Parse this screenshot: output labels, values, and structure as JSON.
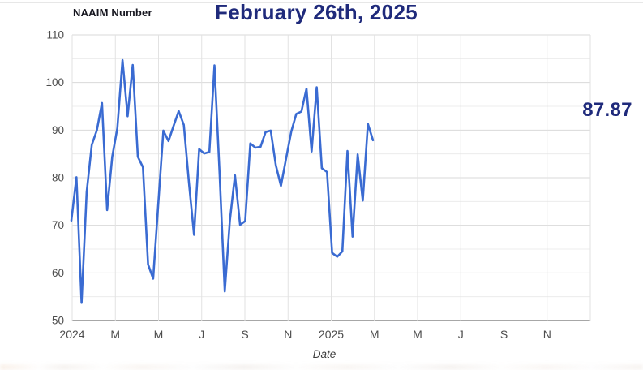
{
  "header": {
    "series_label": "NAAIM Number",
    "title": "February 26th, 2025"
  },
  "chart": {
    "latest_value_text": "87.87",
    "xlabel": "Date"
  },
  "chart_data": {
    "type": "line",
    "title": "February 26th, 2025",
    "series": [
      {
        "name": "NAAIM Number",
        "values": [
          71,
          80.1,
          53.7,
          77,
          86.9,
          90,
          95.7,
          73.2,
          84.4,
          90.4,
          104.7,
          92.9,
          103.7,
          84.4,
          82.2,
          61.8,
          58.8,
          74.5,
          89.9,
          87.7,
          90.9,
          94,
          91.1,
          79,
          68,
          86,
          85.1,
          85.4,
          103.6,
          81,
          56.1,
          71,
          80.5,
          70.1,
          70.9,
          87.2,
          86.3,
          86.5,
          89.6,
          89.9,
          82.6,
          78.3,
          84,
          89.6,
          93.4,
          93.9,
          98.7,
          85.5,
          99,
          82,
          81.2,
          64.2,
          63.4,
          64.5,
          85.6,
          67.6,
          84.9,
          75.2,
          91.3,
          87.87
        ]
      }
    ],
    "x_description": "Weekly readings from January 2024 through February 26, 2025; ticks mark every second month",
    "x_tick_labels": [
      "2024",
      "M",
      "M",
      "J",
      "S",
      "N",
      "2025",
      "M",
      "M",
      "J",
      "S",
      "N"
    ],
    "xlabel": "Date",
    "y_tick_labels": [
      "110",
      "100",
      "90",
      "80",
      "70",
      "60",
      "50"
    ],
    "y_ticks": [
      110,
      100,
      90,
      80,
      70,
      60,
      50
    ],
    "ylim": [
      50,
      110
    ],
    "grid": true,
    "minor_grid_step": 5,
    "legend_position": "none",
    "latest_value": 87.87,
    "line_color": "#3a6bd2"
  },
  "colors": {
    "accent_navy": "#1f2a7b",
    "line_blue": "#3a6bd2",
    "grid_major": "#dadada",
    "grid_minor": "#ececec",
    "grid_vertical": "#e2e2e2",
    "axis_line": "#8a8a8a",
    "tick_text": "#4d4d4d"
  }
}
